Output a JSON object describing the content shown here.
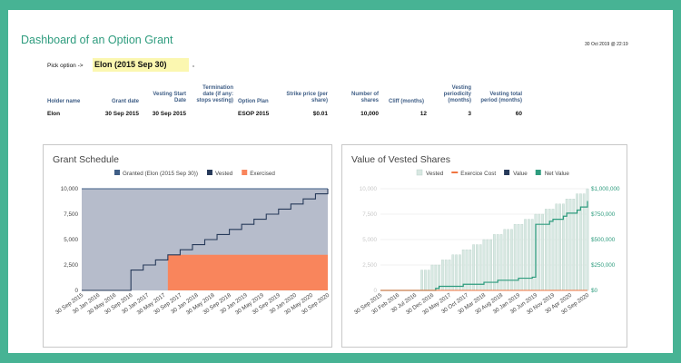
{
  "header": {
    "title": "Dashboard of an Option Grant",
    "timestamp": "30 Oct 2019 @ 22:19",
    "pick_label": "Pick option ->",
    "pick_value": "Elon (2015 Sep 30)"
  },
  "grant_table": {
    "headers": {
      "holder": "Holder name",
      "grant_date": "Grant date",
      "vesting_start": [
        "Vesting Start",
        "Date"
      ],
      "termination": [
        "Termination",
        "date (if any:",
        "stops vesting)"
      ],
      "plan": "Option Plan",
      "strike": [
        "Strike price (per",
        "share)"
      ],
      "shares": [
        "Number of",
        "shares"
      ],
      "cliff": "Cliff (months)",
      "periodicity": [
        "Vesting",
        "periodicity",
        "(months)"
      ],
      "total": [
        "Vesting total",
        "period (months)"
      ]
    },
    "row": {
      "holder": "Elon",
      "grant_date": "30 Sep 2015",
      "vesting_start": "30 Sep 2015",
      "termination": "",
      "plan": "ESOP 2015",
      "strike": "$0.01",
      "shares": "10,000",
      "cliff": "12",
      "periodicity": "3",
      "total": "60"
    }
  },
  "colors": {
    "granted": "#3f5e86",
    "granted_fill": "#b6bccb",
    "vested": "#273a5a",
    "exercised": "#f9855c",
    "value_bar": "#d8e8e2",
    "value_bar_stroke": "#b9d2c9",
    "net_value": "#2e9c7e",
    "exercise_cost": "#f07540",
    "value": "#273a5a"
  },
  "chart_data": [
    {
      "type": "area",
      "title": "Grant Schedule",
      "legend": [
        "Granted (Elon (2015 Sep 30))",
        "Vested",
        "Exercised"
      ],
      "legend_position": "top",
      "ylim": [
        0,
        10000
      ],
      "y_ticks": [
        "0",
        "2,500",
        "5,000",
        "7,500",
        "10,000"
      ],
      "x_labels": [
        "30 Sep 2015",
        "30 Jan 2016",
        "30 May 2016",
        "30 Sep 2016",
        "30 Jan 2017",
        "30 May 2017",
        "30 Sep 2017",
        "30 Jan 2018",
        "30 May 2018",
        "30 Sep 2018",
        "30 Jan 2019",
        "30 May 2019",
        "30 Sep 2019",
        "30 Jan 2020",
        "30 May 2020",
        "30 Sep 2020"
      ],
      "x_month_range": [
        0,
        60
      ],
      "granted": 10000,
      "vested_steps": {
        "months": [
          0,
          12,
          15,
          18,
          21,
          24,
          27,
          30,
          33,
          36,
          39,
          42,
          45,
          48,
          51,
          54,
          57,
          60
        ],
        "values": [
          0,
          2000,
          2500,
          3000,
          3500,
          4000,
          4500,
          5000,
          5500,
          6000,
          6500,
          7000,
          7500,
          8000,
          8500,
          9000,
          9500,
          10000
        ]
      },
      "exercised_steps": {
        "months": [
          0,
          21,
          60
        ],
        "values": [
          0,
          3500,
          3500
        ]
      },
      "grid": true
    },
    {
      "type": "bar",
      "title": "Value of Vested Shares",
      "legend": [
        "Vested",
        "Exercice Cost",
        "Value",
        "Net Value"
      ],
      "legend_position": "top",
      "ylim_left": [
        0,
        10000
      ],
      "y_ticks_left": [
        "0",
        "2,500",
        "5,000",
        "7,500",
        "10,000"
      ],
      "ylim_right": [
        0,
        1000000
      ],
      "y_ticks_right": [
        "$0",
        "$250,000",
        "$500,000",
        "$750,000",
        "$1,000,000"
      ],
      "x_labels": [
        "30 Sep 2015",
        "30 Feb 2016",
        "30 Jul 2016",
        "30 Dec 2016",
        "30 May 2017",
        "30 Oct 2017",
        "30 Mar 2018",
        "30 Aug 2018",
        "30 Jan 2019",
        "30 Jun 2019",
        "30 Nov 2019",
        "30 Apr 2020",
        "30 Sep 2020"
      ],
      "vested_bars": {
        "months": [
          12,
          13,
          14,
          15,
          16,
          17,
          18,
          19,
          20,
          21,
          22,
          23,
          24,
          25,
          26,
          27,
          28,
          29,
          30,
          31,
          32,
          33,
          34,
          35,
          36,
          37,
          38,
          39,
          40,
          41,
          42,
          43,
          44,
          45,
          46,
          47,
          48,
          49,
          50,
          51,
          52,
          53,
          54,
          55,
          56,
          57,
          58,
          59,
          60
        ],
        "values": [
          2000,
          2000,
          2000,
          2500,
          2500,
          2500,
          3000,
          3000,
          3000,
          3500,
          3500,
          3500,
          4000,
          4000,
          4000,
          4500,
          4500,
          4500,
          5000,
          5000,
          5000,
          5500,
          5500,
          5500,
          6000,
          6000,
          6000,
          6500,
          6500,
          6500,
          7000,
          7000,
          7000,
          7500,
          7500,
          7500,
          8000,
          8000,
          8000,
          8500,
          8500,
          8500,
          9000,
          9000,
          9000,
          9500,
          9500,
          9500,
          10000
        ]
      },
      "net_value_steps": {
        "months": [
          0,
          16,
          17,
          24,
          30,
          34,
          40,
          44,
          45,
          49,
          50,
          53,
          54,
          57,
          58,
          60
        ],
        "values": [
          0,
          20000,
          40000,
          60000,
          80000,
          100000,
          120000,
          130000,
          650000,
          680000,
          700000,
          730000,
          760000,
          790000,
          820000,
          880000
        ]
      },
      "exercise_cost": 0,
      "grid": true
    }
  ]
}
